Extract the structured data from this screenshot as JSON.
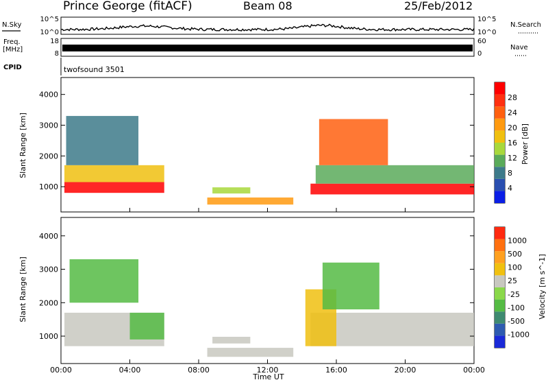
{
  "header": {
    "title": "Prince George (fitACF)",
    "beam": "Beam 08",
    "date": "25/Feb/2012"
  },
  "top_panels": {
    "nsky_label": "N.Sky",
    "nsearch_label": "N.Search",
    "nsky_ticks": [
      "10^5",
      "10^0"
    ],
    "nsearch_ticks": [
      "10^5",
      "10^0"
    ],
    "freq_label": "Freq.",
    "freq_unit": "[MHz]",
    "freq_ticks": [
      "18",
      "8"
    ],
    "nave_label": "Nave",
    "nave_ticks": [
      "60",
      "0"
    ],
    "cpid_label": "CPID",
    "cpid_value": "twofsound 3501"
  },
  "x_ticks": [
    "00:00",
    "04:00",
    "08:00",
    "12:00",
    "16:00",
    "20:00",
    "00:00"
  ],
  "x_label": "Time UT",
  "y_label": "Slant Range [km]",
  "y_ticks": [
    "1000",
    "2000",
    "3000",
    "4000"
  ],
  "colorbars": {
    "power": {
      "label": "Power [dB]",
      "ticks": [
        "4",
        "8",
        "12",
        "16",
        "20",
        "24",
        "28"
      ],
      "colors": [
        "#0a1ee6",
        "#2a4fb0",
        "#3d7a8a",
        "#5aaa5a",
        "#a8d83c",
        "#f0c010",
        "#ff9a10",
        "#ff6010",
        "#ff3010",
        "#ff0000"
      ]
    },
    "velocity": {
      "label": "Velocity [m s^-1]",
      "ticks": [
        "1000",
        "500",
        "100",
        "25",
        "-25",
        "-100",
        "-500",
        "-1000"
      ],
      "colors": [
        "#1a2ad8",
        "#2e5bb0",
        "#3e8a70",
        "#55bb44",
        "#8ad84a",
        "#c8c8c0",
        "#f0c010",
        "#ffa020",
        "#ff7010",
        "#ff2a10"
      ]
    }
  },
  "chart_data": [
    {
      "type": "heatmap",
      "title": "Power",
      "xlabel": "Time UT",
      "ylabel": "Slant Range [km]",
      "x_range_hours": [
        0,
        24
      ],
      "ylim": [
        180,
        4550
      ],
      "colorbar_label": "Power [dB]",
      "colorbar_range": [
        0,
        30
      ],
      "regions": [
        {
          "t_start": 0.2,
          "t_end": 6.0,
          "r_low": 800,
          "r_high": 1150,
          "value": 29
        },
        {
          "t_start": 0.2,
          "t_end": 6.0,
          "r_low": 1150,
          "r_high": 1700,
          "value": 16
        },
        {
          "t_start": 0.3,
          "t_end": 4.5,
          "r_low": 1700,
          "r_high": 3300,
          "value": 8
        },
        {
          "t_start": 8.5,
          "t_end": 13.5,
          "r_low": 420,
          "r_high": 650,
          "value": 20
        },
        {
          "t_start": 8.8,
          "t_end": 11.0,
          "r_low": 780,
          "r_high": 980,
          "value": 12
        },
        {
          "t_start": 14.5,
          "t_end": 24.0,
          "r_low": 750,
          "r_high": 1100,
          "value": 29
        },
        {
          "t_start": 14.8,
          "t_end": 24.0,
          "r_low": 1100,
          "r_high": 1700,
          "value": 10
        },
        {
          "t_start": 15.0,
          "t_end": 19.0,
          "r_low": 1700,
          "r_high": 3200,
          "value": 22
        }
      ]
    },
    {
      "type": "heatmap",
      "title": "Velocity",
      "xlabel": "Time UT",
      "ylabel": "Slant Range [km]",
      "x_range_hours": [
        0,
        24
      ],
      "ylim": [
        180,
        4550
      ],
      "colorbar_label": "Velocity [m s^-1]",
      "colorbar_range": [
        -1000,
        1000
      ],
      "regions": [
        {
          "t_start": 0.2,
          "t_end": 6.0,
          "r_low": 700,
          "r_high": 1700,
          "value": 0
        },
        {
          "t_start": 4.0,
          "t_end": 6.0,
          "r_low": 900,
          "r_high": 1700,
          "value": -300
        },
        {
          "t_start": 0.5,
          "t_end": 4.5,
          "r_low": 2000,
          "r_high": 3300,
          "value": -400
        },
        {
          "t_start": 8.5,
          "t_end": 13.5,
          "r_low": 380,
          "r_high": 650,
          "value": 150
        },
        {
          "t_start": 8.8,
          "t_end": 11.0,
          "r_low": 780,
          "r_high": 980,
          "value": 0
        },
        {
          "t_start": 14.5,
          "t_end": 24.0,
          "r_low": 700,
          "r_high": 1700,
          "value": 0
        },
        {
          "t_start": 14.2,
          "t_end": 16.0,
          "r_low": 700,
          "r_high": 2400,
          "value": 200
        },
        {
          "t_start": 15.2,
          "t_end": 18.5,
          "r_low": 1800,
          "r_high": 3200,
          "value": -300
        }
      ]
    }
  ]
}
